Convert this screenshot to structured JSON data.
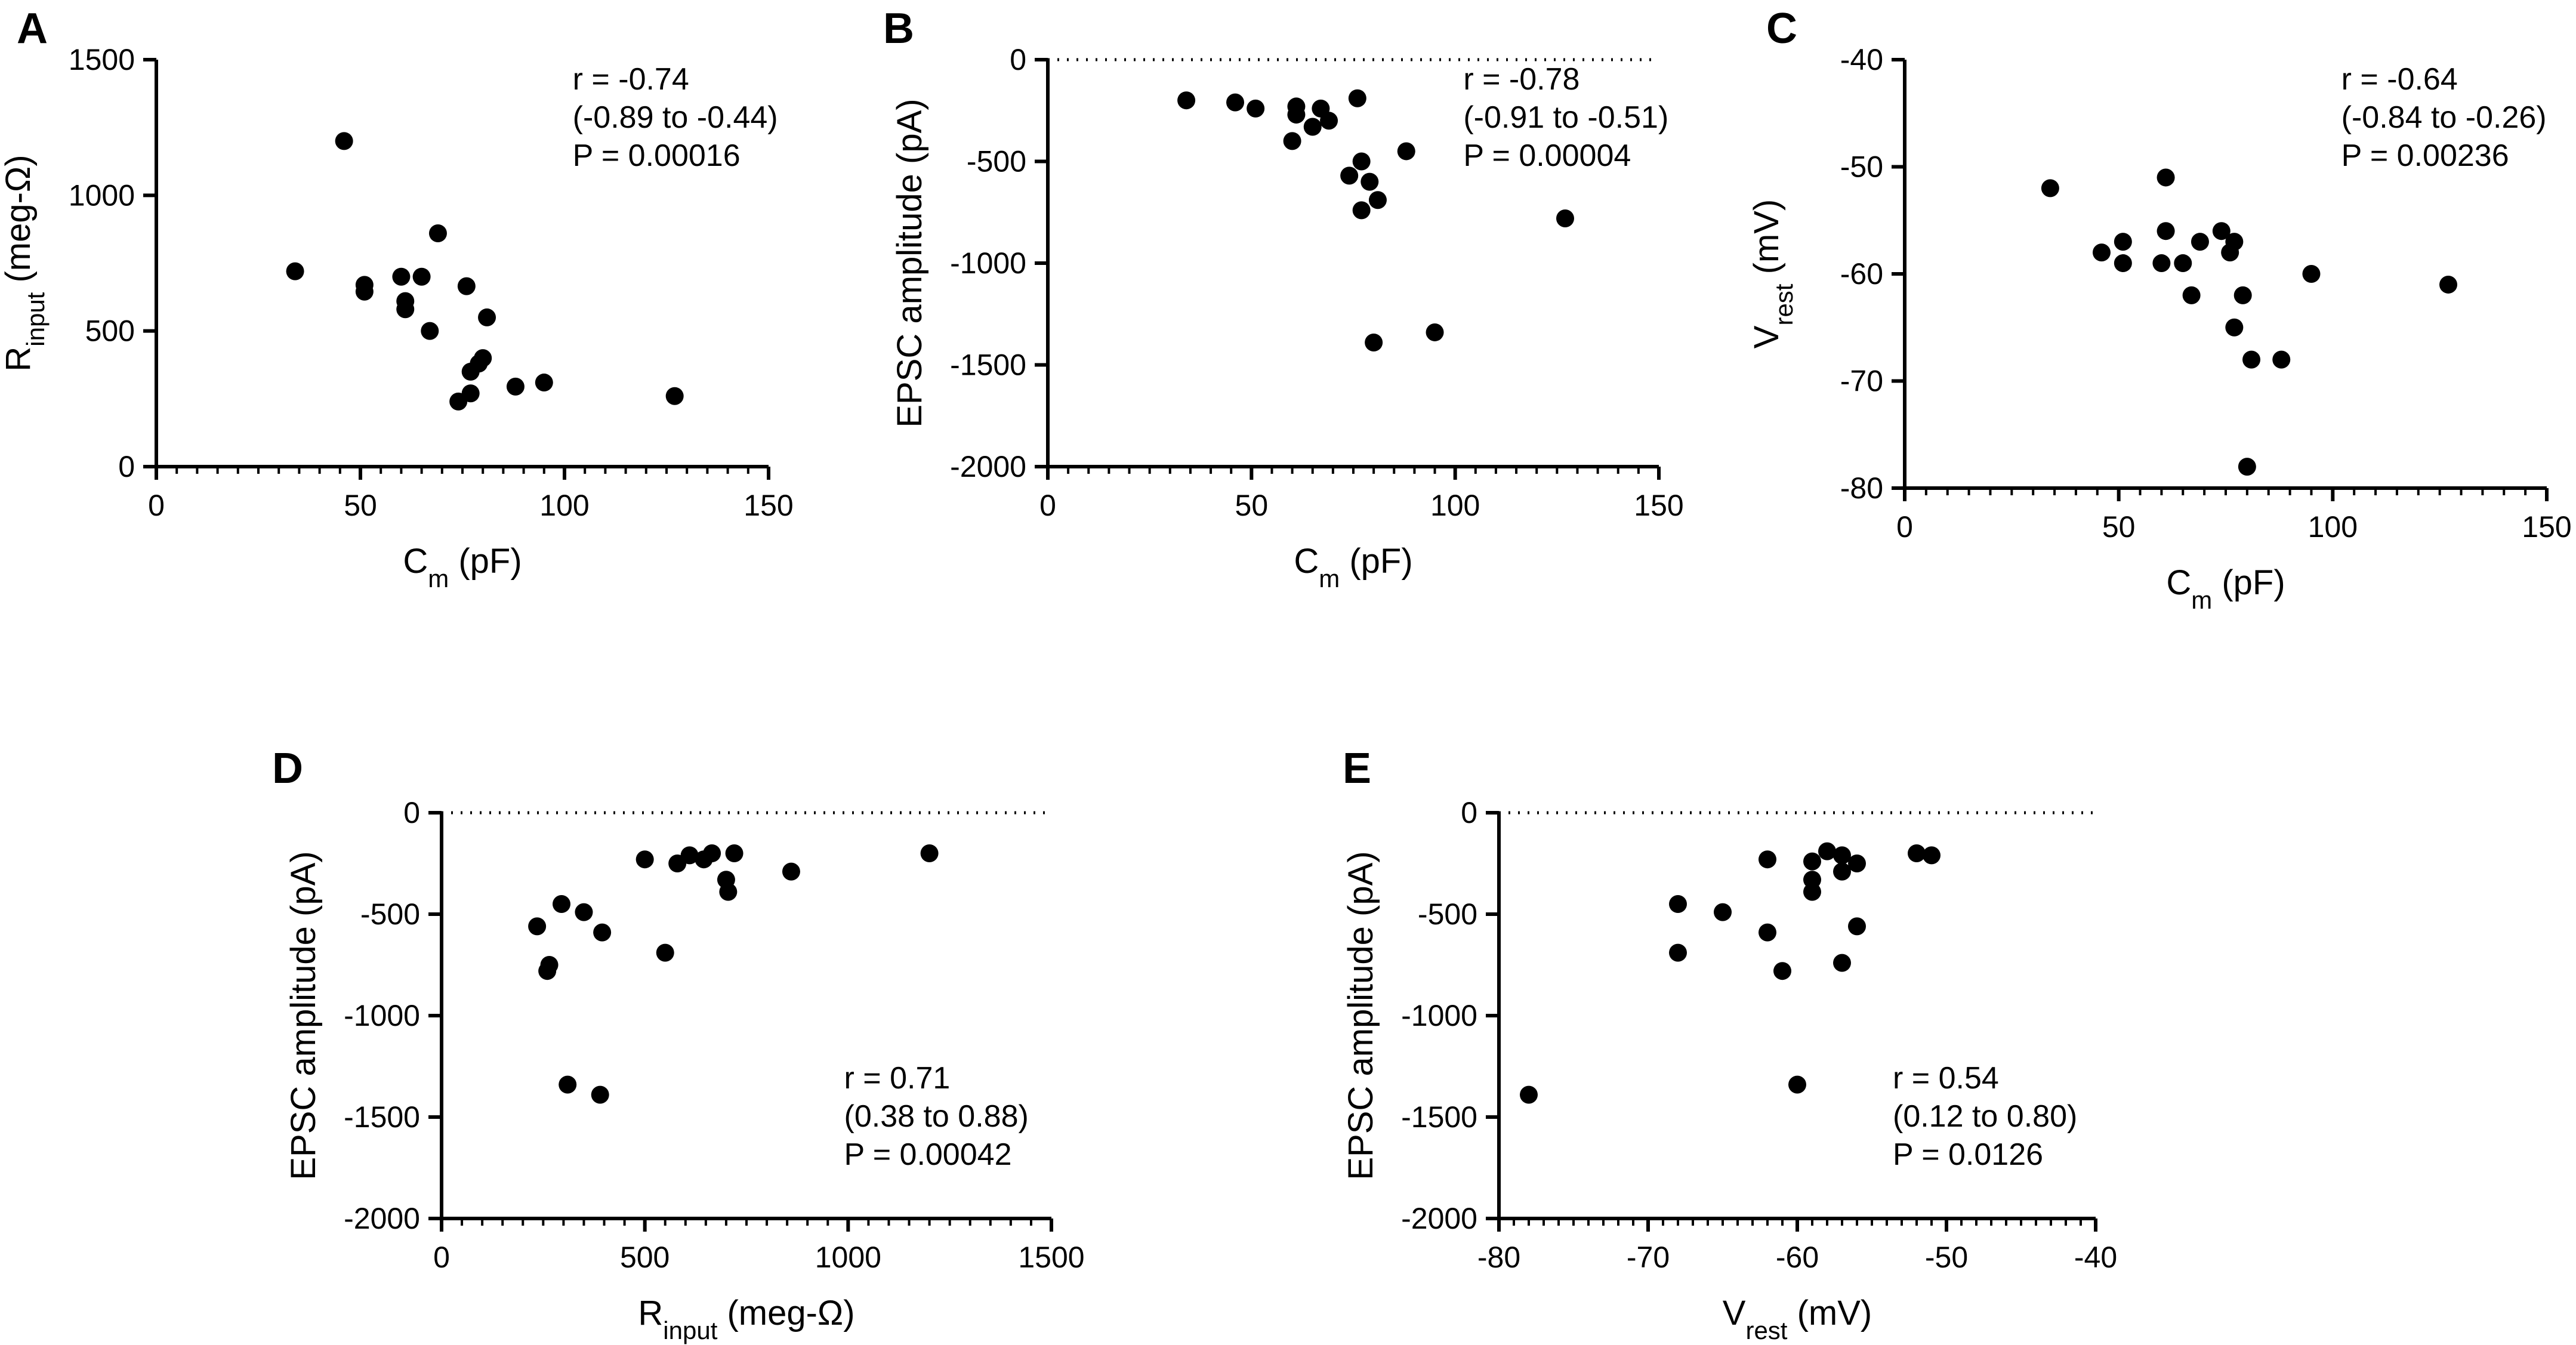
{
  "figure": {
    "background": "#ffffff",
    "point_color": "#000000"
  },
  "chart_data": [
    {
      "panel": "A",
      "type": "scatter",
      "xlabel": "C_m (pF)",
      "ylabel": "R_input (meg-Ω)",
      "xlabel_parts": {
        "main": "C",
        "sub": "m",
        "rest": " (pF)"
      },
      "ylabel_parts": {
        "main": "R",
        "sub": "input",
        "rest": " (meg-Ω)"
      },
      "xlim": [
        0,
        150
      ],
      "ylim": [
        0,
        1500
      ],
      "xticks": [
        0,
        50,
        100,
        150
      ],
      "xtick_labels": [
        "0",
        "50",
        "100",
        "150"
      ],
      "yticks": [
        0,
        500,
        1000,
        1500
      ],
      "ytick_labels": [
        "0",
        "500",
        "1000",
        "1500"
      ],
      "x_minor_step": 5,
      "y_minor_step": null,
      "zero_line": false,
      "stats": {
        "r": "r = -0.74",
        "ci": "(-0.89 to -0.44)",
        "p": "P = 0.00016"
      },
      "stats_position": "top-right",
      "points": [
        {
          "x": 34,
          "y": 720
        },
        {
          "x": 46,
          "y": 1200
        },
        {
          "x": 51,
          "y": 670
        },
        {
          "x": 51,
          "y": 645
        },
        {
          "x": 60,
          "y": 700
        },
        {
          "x": 61,
          "y": 610
        },
        {
          "x": 61,
          "y": 580
        },
        {
          "x": 65,
          "y": 700
        },
        {
          "x": 67,
          "y": 500
        },
        {
          "x": 69,
          "y": 860
        },
        {
          "x": 74,
          "y": 240
        },
        {
          "x": 76,
          "y": 665
        },
        {
          "x": 77,
          "y": 350
        },
        {
          "x": 77,
          "y": 270
        },
        {
          "x": 79,
          "y": 380
        },
        {
          "x": 80,
          "y": 400
        },
        {
          "x": 81,
          "y": 550
        },
        {
          "x": 88,
          "y": 295
        },
        {
          "x": 95,
          "y": 310
        },
        {
          "x": 127,
          "y": 260
        }
      ]
    },
    {
      "panel": "B",
      "type": "scatter",
      "xlabel": "C_m (pF)",
      "ylabel": "EPSC amplitude (pA)",
      "xlabel_parts": {
        "main": "C",
        "sub": "m",
        "rest": " (pF)"
      },
      "ylabel_parts": {
        "main": "EPSC amplitude (pA)",
        "sub": "",
        "rest": ""
      },
      "xlim": [
        0,
        150
      ],
      "ylim": [
        -2000,
        0
      ],
      "xticks": [
        0,
        50,
        100,
        150
      ],
      "xtick_labels": [
        "0",
        "50",
        "100",
        "150"
      ],
      "yticks": [
        -2000,
        -1500,
        -1000,
        -500,
        0
      ],
      "ytick_labels": [
        "-2000",
        "-1500",
        "-1000",
        "-500",
        "0"
      ],
      "x_minor_step": 5,
      "y_minor_step": null,
      "zero_line": true,
      "stats": {
        "r": "r = -0.78",
        "ci": "(-0.91 to -0.51)",
        "p": "P = 0.00004"
      },
      "stats_position": "top-right",
      "points": [
        {
          "x": 34,
          "y": -200
        },
        {
          "x": 46,
          "y": -210
        },
        {
          "x": 51,
          "y": -240
        },
        {
          "x": 60,
          "y": -400
        },
        {
          "x": 61,
          "y": -230
        },
        {
          "x": 61,
          "y": -270
        },
        {
          "x": 65,
          "y": -330
        },
        {
          "x": 67,
          "y": -240
        },
        {
          "x": 69,
          "y": -300
        },
        {
          "x": 74,
          "y": -570
        },
        {
          "x": 76,
          "y": -190
        },
        {
          "x": 77,
          "y": -500
        },
        {
          "x": 77,
          "y": -740
        },
        {
          "x": 79,
          "y": -600
        },
        {
          "x": 80,
          "y": -1390
        },
        {
          "x": 81,
          "y": -690
        },
        {
          "x": 88,
          "y": -450
        },
        {
          "x": 95,
          "y": -1340
        },
        {
          "x": 127,
          "y": -780
        }
      ]
    },
    {
      "panel": "C",
      "type": "scatter",
      "xlabel": "C_m (pF)",
      "ylabel": "V_rest (mV)",
      "xlabel_parts": {
        "main": "C",
        "sub": "m",
        "rest": " (pF)"
      },
      "ylabel_parts": {
        "main": "V",
        "sub": "rest",
        "rest": " (mV)"
      },
      "xlim": [
        0,
        150
      ],
      "ylim": [
        -80,
        -40
      ],
      "xticks": [
        0,
        50,
        100,
        150
      ],
      "xtick_labels": [
        "0",
        "50",
        "100",
        "150"
      ],
      "yticks": [
        -80,
        -70,
        -60,
        -50,
        -40
      ],
      "ytick_labels": [
        "-80",
        "-70",
        "-60",
        "-50",
        "-40"
      ],
      "x_minor_step": 5,
      "y_minor_step": null,
      "zero_line": false,
      "stats": {
        "r": "r = -0.64",
        "ci": "(-0.84 to -0.26)",
        "p": "P = 0.00236"
      },
      "stats_position": "top-right",
      "points": [
        {
          "x": 34,
          "y": -52
        },
        {
          "x": 46,
          "y": -58
        },
        {
          "x": 51,
          "y": -57
        },
        {
          "x": 51,
          "y": -59
        },
        {
          "x": 60,
          "y": -59
        },
        {
          "x": 61,
          "y": -51
        },
        {
          "x": 61,
          "y": -56
        },
        {
          "x": 65,
          "y": -59
        },
        {
          "x": 67,
          "y": -62
        },
        {
          "x": 69,
          "y": -57
        },
        {
          "x": 74,
          "y": -56
        },
        {
          "x": 76,
          "y": -58
        },
        {
          "x": 77,
          "y": -57
        },
        {
          "x": 77,
          "y": -65
        },
        {
          "x": 79,
          "y": -62
        },
        {
          "x": 80,
          "y": -78
        },
        {
          "x": 81,
          "y": -68
        },
        {
          "x": 88,
          "y": -68
        },
        {
          "x": 95,
          "y": -60
        },
        {
          "x": 127,
          "y": -61
        }
      ]
    },
    {
      "panel": "D",
      "type": "scatter",
      "xlabel": "R_input (meg-Ω)",
      "ylabel": "EPSC amplitude (pA)",
      "xlabel_parts": {
        "main": "R",
        "sub": "input",
        "rest": " (meg-Ω)"
      },
      "ylabel_parts": {
        "main": "EPSC amplitude (pA)",
        "sub": "",
        "rest": ""
      },
      "xlim": [
        0,
        1500
      ],
      "ylim": [
        -2000,
        0
      ],
      "xticks": [
        0,
        500,
        1000,
        1500
      ],
      "xtick_labels": [
        "0",
        "500",
        "1000",
        "1500"
      ],
      "yticks": [
        -2000,
        -1500,
        -1000,
        -500,
        0
      ],
      "ytick_labels": [
        "-2000",
        "-1500",
        "-1000",
        "-500",
        "0"
      ],
      "x_minor_step": 50,
      "y_minor_step": null,
      "zero_line": true,
      "stats": {
        "r": "r = 0.71",
        "ci": "(0.38 to 0.88)",
        "p": "P = 0.00042"
      },
      "stats_position": "bottom-right",
      "points": [
        {
          "x": 235,
          "y": -560
        },
        {
          "x": 260,
          "y": -780
        },
        {
          "x": 265,
          "y": -750
        },
        {
          "x": 295,
          "y": -450
        },
        {
          "x": 310,
          "y": -1340
        },
        {
          "x": 350,
          "y": -490
        },
        {
          "x": 390,
          "y": -1390
        },
        {
          "x": 395,
          "y": -590
        },
        {
          "x": 500,
          "y": -230
        },
        {
          "x": 550,
          "y": -690
        },
        {
          "x": 580,
          "y": -250
        },
        {
          "x": 610,
          "y": -210
        },
        {
          "x": 645,
          "y": -230
        },
        {
          "x": 665,
          "y": -200
        },
        {
          "x": 700,
          "y": -330
        },
        {
          "x": 705,
          "y": -390
        },
        {
          "x": 720,
          "y": -200
        },
        {
          "x": 860,
          "y": -290
        },
        {
          "x": 1200,
          "y": -200
        }
      ]
    },
    {
      "panel": "E",
      "type": "scatter",
      "xlabel": "V_rest (mV)",
      "ylabel": "EPSC amplitude (pA)",
      "xlabel_parts": {
        "main": "V",
        "sub": "rest",
        "rest": " (mV)"
      },
      "ylabel_parts": {
        "main": "EPSC amplitude (pA)",
        "sub": "",
        "rest": ""
      },
      "xlim": [
        -80,
        -40
      ],
      "ylim": [
        -2000,
        0
      ],
      "xticks": [
        -80,
        -70,
        -60,
        -50,
        -40
      ],
      "xtick_labels": [
        "-80",
        "-70",
        "-60",
        "-50",
        "-40"
      ],
      "x_minor_step": 1,
      "y_minor_step": null,
      "zero_line": true,
      "stats": {
        "r": "r = 0.54",
        "ci": "(0.12 to 0.80)",
        "p": "P = 0.0126"
      },
      "stats_position": "bottom-right",
      "yticks": [
        -2000,
        -1500,
        -1000,
        -500,
        0
      ],
      "ytick_labels": [
        "-2000",
        "-1500",
        "-1000",
        "-500",
        "0"
      ],
      "points": [
        {
          "x": -78,
          "y": -1390
        },
        {
          "x": -68,
          "y": -450
        },
        {
          "x": -68,
          "y": -690
        },
        {
          "x": -65,
          "y": -490
        },
        {
          "x": -62,
          "y": -230
        },
        {
          "x": -62,
          "y": -590
        },
        {
          "x": -61,
          "y": -780
        },
        {
          "x": -60,
          "y": -1340
        },
        {
          "x": -59,
          "y": -240
        },
        {
          "x": -59,
          "y": -330
        },
        {
          "x": -59,
          "y": -390
        },
        {
          "x": -58,
          "y": -190
        },
        {
          "x": -57,
          "y": -210
        },
        {
          "x": -57,
          "y": -290
        },
        {
          "x": -57,
          "y": -740
        },
        {
          "x": -56,
          "y": -250
        },
        {
          "x": -56,
          "y": -560
        },
        {
          "x": -52,
          "y": -200
        },
        {
          "x": -51,
          "y": -210
        }
      ]
    }
  ]
}
